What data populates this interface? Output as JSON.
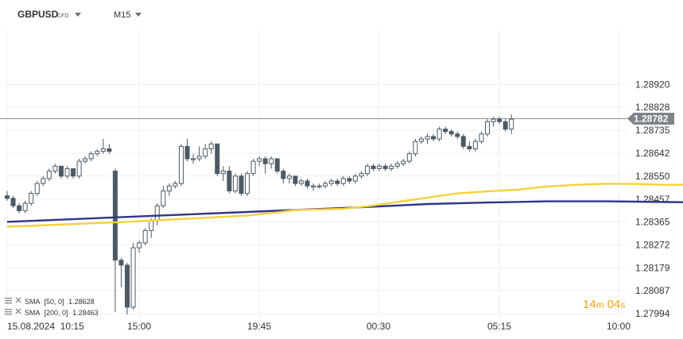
{
  "toolbar": {
    "symbol": "GBPUSD",
    "symbol_type": "CFD",
    "timeframe": "M15"
  },
  "countdown": {
    "minutes": "14",
    "minutes_unit": "m",
    "seconds": "04",
    "seconds_unit": "s"
  },
  "colors": {
    "bull_candle": "#ffffff",
    "bear_candle": "#4c5a66",
    "candle_outline": "#4c5a66",
    "sma50": "#f5d13b",
    "sma200": "#2f3488",
    "price_line": "#8e9499",
    "price_label_bg": "#7d848a",
    "countdown": "#f2a515",
    "grid": "#eef0f2"
  },
  "chart_data": {
    "type": "candlestick",
    "y_axis": {
      "ticks": [
        "1.28920",
        "1.28828",
        "1.28735",
        "1.28642",
        "1.28550",
        "1.28457",
        "1.28365",
        "1.28272",
        "1.28179",
        "1.28087",
        "1.27994"
      ],
      "ylim": [
        1.2797,
        1.2896
      ]
    },
    "x_axis": {
      "ticks": [
        "15.08.2024  10:15",
        "15:00",
        "19:45",
        "00:30",
        "05:15",
        "10:00"
      ]
    },
    "current_price": {
      "value": 1.28782,
      "label": "1.28782"
    },
    "indicators": [
      {
        "name": "SMA",
        "params": "[50, 0]",
        "value": "1.28628"
      },
      {
        "name": "SMA",
        "params": "[200, 0]",
        "value": "1.28463"
      }
    ],
    "sma50_points": [
      [
        0,
        1.28345
      ],
      [
        10,
        1.28355
      ],
      [
        20,
        1.28365
      ],
      [
        30,
        1.28378
      ],
      [
        40,
        1.2839
      ],
      [
        45,
        1.28403
      ],
      [
        48,
        1.28413
      ],
      [
        52,
        1.28415
      ],
      [
        56,
        1.28418
      ],
      [
        60,
        1.28428
      ],
      [
        65,
        1.28445
      ],
      [
        70,
        1.28463
      ],
      [
        75,
        1.2848
      ],
      [
        80,
        1.28488
      ],
      [
        85,
        1.28495
      ],
      [
        90,
        1.28508
      ],
      [
        95,
        1.28515
      ],
      [
        100,
        1.28519
      ],
      [
        105,
        1.28518
      ],
      [
        110,
        1.28514
      ],
      [
        115,
        1.28517
      ],
      [
        125,
        1.28524
      ],
      [
        135,
        1.28524
      ],
      [
        142,
        1.28526
      ],
      [
        148,
        1.28552
      ],
      [
        155,
        1.28587
      ],
      [
        160,
        1.28603
      ],
      [
        165,
        1.28612
      ],
      [
        170,
        1.28613
      ],
      [
        180,
        1.2862
      ],
      [
        190,
        1.28642
      ]
    ],
    "sma200_points": [
      [
        0,
        1.28365
      ],
      [
        20,
        1.28385
      ],
      [
        40,
        1.28405
      ],
      [
        50,
        1.28415
      ],
      [
        60,
        1.28425
      ],
      [
        70,
        1.28437
      ],
      [
        80,
        1.28443
      ],
      [
        90,
        1.28448
      ],
      [
        100,
        1.28448
      ],
      [
        110,
        1.28445
      ],
      [
        120,
        1.28442
      ],
      [
        130,
        1.28442
      ],
      [
        140,
        1.28442
      ],
      [
        145,
        1.2844
      ],
      [
        150,
        1.28442
      ],
      [
        160,
        1.28442
      ],
      [
        170,
        1.28445
      ],
      [
        180,
        1.28448
      ],
      [
        190,
        1.28453
      ]
    ],
    "candles": [
      [
        1.2847,
        1.2849,
        1.2845,
        1.2846
      ],
      [
        1.2846,
        1.2847,
        1.2842,
        1.2843
      ],
      [
        1.2843,
        1.2844,
        1.284,
        1.2841
      ],
      [
        1.2841,
        1.2845,
        1.284,
        1.2844
      ],
      [
        1.2844,
        1.2849,
        1.2843,
        1.2848
      ],
      [
        1.2848,
        1.2853,
        1.2847,
        1.2852
      ],
      [
        1.2852,
        1.2855,
        1.2851,
        1.2854
      ],
      [
        1.2854,
        1.2858,
        1.2853,
        1.2857
      ],
      [
        1.2857,
        1.286,
        1.2856,
        1.2859
      ],
      [
        1.2859,
        1.2859,
        1.2854,
        1.2855
      ],
      [
        1.2855,
        1.2859,
        1.2854,
        1.2858
      ],
      [
        1.2858,
        1.2858,
        1.2854,
        1.2855
      ],
      [
        1.2855,
        1.2862,
        1.2854,
        1.2861
      ],
      [
        1.2861,
        1.2863,
        1.286,
        1.2862
      ],
      [
        1.2862,
        1.2865,
        1.2861,
        1.2864
      ],
      [
        1.2864,
        1.2866,
        1.2863,
        1.2865
      ],
      [
        1.2865,
        1.287,
        1.2864,
        1.2866
      ],
      [
        1.2866,
        1.2868,
        1.2864,
        1.2865
      ],
      [
        1.2857,
        1.2858,
        1.28,
        1.2821
      ],
      [
        1.2821,
        1.2822,
        1.281,
        1.2819
      ],
      [
        1.2819,
        1.282,
        1.2799,
        1.2802
      ],
      [
        1.2802,
        1.2828,
        1.2801,
        1.2826
      ],
      [
        1.2826,
        1.2829,
        1.2824,
        1.2828
      ],
      [
        1.2828,
        1.2834,
        1.2827,
        1.2833
      ],
      [
        1.2833,
        1.2838,
        1.283,
        1.2837
      ],
      [
        1.2837,
        1.2844,
        1.2835,
        1.2843
      ],
      [
        1.2843,
        1.2851,
        1.2842,
        1.2849
      ],
      [
        1.2849,
        1.2852,
        1.2847,
        1.2851
      ],
      [
        1.2851,
        1.2853,
        1.285,
        1.2852
      ],
      [
        1.2852,
        1.2868,
        1.2851,
        1.2867
      ],
      [
        1.2867,
        1.287,
        1.2861,
        1.2862
      ],
      [
        1.2862,
        1.2864,
        1.286,
        1.2862
      ],
      [
        1.2862,
        1.2867,
        1.2861,
        1.2863
      ],
      [
        1.2863,
        1.2868,
        1.2862,
        1.2866
      ],
      [
        1.2866,
        1.2869,
        1.2864,
        1.2868
      ],
      [
        1.2868,
        1.2868,
        1.2855,
        1.2856
      ],
      [
        1.2856,
        1.2859,
        1.2853,
        1.2857
      ],
      [
        1.2857,
        1.2859,
        1.2848,
        1.2849
      ],
      [
        1.2849,
        1.2856,
        1.2848,
        1.2855
      ],
      [
        1.2855,
        1.2856,
        1.2847,
        1.2848
      ],
      [
        1.2848,
        1.2857,
        1.2847,
        1.2856
      ],
      [
        1.2856,
        1.2862,
        1.2855,
        1.2861
      ],
      [
        1.2861,
        1.2863,
        1.2859,
        1.2862
      ],
      [
        1.2862,
        1.2863,
        1.2856,
        1.286
      ],
      [
        1.286,
        1.2863,
        1.2858,
        1.2862
      ],
      [
        1.2862,
        1.2862,
        1.2856,
        1.2857
      ],
      [
        1.2857,
        1.2858,
        1.2852,
        1.2854
      ],
      [
        1.2854,
        1.2856,
        1.2852,
        1.2855
      ],
      [
        1.2855,
        1.2855,
        1.2851,
        1.2852
      ],
      [
        1.2852,
        1.2854,
        1.2851,
        1.2853
      ],
      [
        1.2853,
        1.2854,
        1.285,
        1.2851
      ],
      [
        1.2851,
        1.2852,
        1.2849,
        1.2851
      ],
      [
        1.2851,
        1.2852,
        1.285,
        1.2851
      ],
      [
        1.2851,
        1.2853,
        1.285,
        1.2852
      ],
      [
        1.2852,
        1.2854,
        1.2851,
        1.2853
      ],
      [
        1.2853,
        1.2854,
        1.2851,
        1.2852
      ],
      [
        1.2852,
        1.2855,
        1.2851,
        1.2854
      ],
      [
        1.2854,
        1.2855,
        1.2852,
        1.2853
      ],
      [
        1.2853,
        1.2856,
        1.2852,
        1.2855
      ],
      [
        1.2855,
        1.2857,
        1.2854,
        1.2856
      ],
      [
        1.2856,
        1.286,
        1.2855,
        1.2859
      ],
      [
        1.2859,
        1.286,
        1.2857,
        1.2858
      ],
      [
        1.2858,
        1.286,
        1.2857,
        1.2859
      ],
      [
        1.2859,
        1.286,
        1.2857,
        1.2858
      ],
      [
        1.2858,
        1.286,
        1.2857,
        1.2859
      ],
      [
        1.2859,
        1.2861,
        1.2858,
        1.286
      ],
      [
        1.286,
        1.2862,
        1.2859,
        1.2861
      ],
      [
        1.2861,
        1.2865,
        1.286,
        1.2864
      ],
      [
        1.2864,
        1.287,
        1.2863,
        1.2869
      ],
      [
        1.2869,
        1.2871,
        1.2868,
        1.287
      ],
      [
        1.287,
        1.2872,
        1.2868,
        1.2871
      ],
      [
        1.2871,
        1.2872,
        1.2869,
        1.287
      ],
      [
        1.287,
        1.2875,
        1.2869,
        1.2874
      ],
      [
        1.2874,
        1.2875,
        1.2872,
        1.2873
      ],
      [
        1.2873,
        1.2874,
        1.2871,
        1.2872
      ],
      [
        1.2872,
        1.2873,
        1.287,
        1.2871
      ],
      [
        1.2871,
        1.2872,
        1.2866,
        1.2867
      ],
      [
        1.2867,
        1.2869,
        1.2865,
        1.2866
      ],
      [
        1.2866,
        1.287,
        1.2865,
        1.2869
      ],
      [
        1.2869,
        1.2873,
        1.2868,
        1.2872
      ],
      [
        1.2872,
        1.2878,
        1.2871,
        1.2877
      ],
      [
        1.2877,
        1.2879,
        1.2875,
        1.2878
      ],
      [
        1.2878,
        1.2879,
        1.2876,
        1.2877
      ],
      [
        1.2877,
        1.2878,
        1.2873,
        1.2874
      ],
      [
        1.2874,
        1.288,
        1.2872,
        1.2878
      ]
    ]
  }
}
